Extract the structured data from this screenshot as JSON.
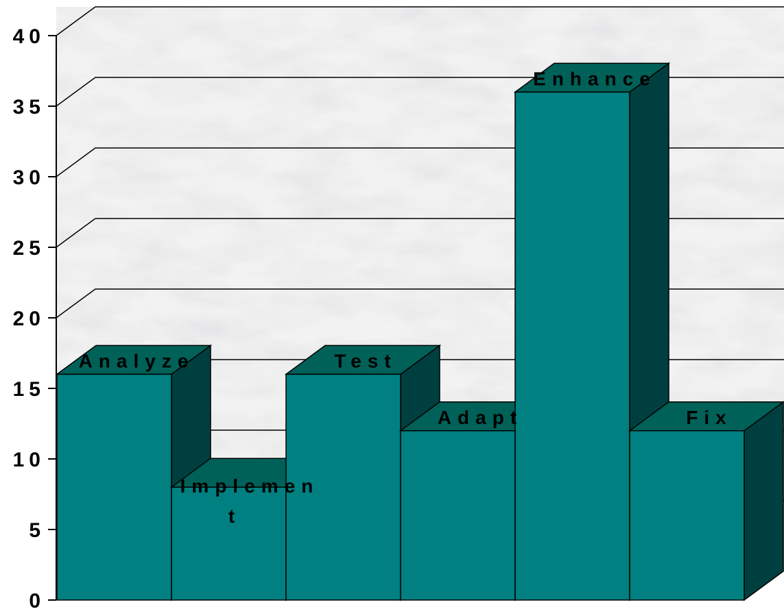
{
  "chart_data": {
    "type": "bar",
    "three_d": true,
    "categories": [
      "Analyze",
      "Implement",
      "Test",
      "Adapt",
      "Enhance",
      "Fix"
    ],
    "series": [
      {
        "values": [
          16,
          8,
          16,
          12,
          36,
          12
        ]
      }
    ],
    "ylim": [
      0,
      40
    ],
    "yticks": [
      0,
      5,
      10,
      15,
      20,
      25,
      30,
      35,
      40
    ],
    "grid": true,
    "legend": "none",
    "data_labels": "category name above each bar",
    "colors": {
      "front": "#008080",
      "top": "#006158",
      "side": "#003f3f",
      "outline": "#000000",
      "wall": "marble (gray/white texture)"
    }
  }
}
